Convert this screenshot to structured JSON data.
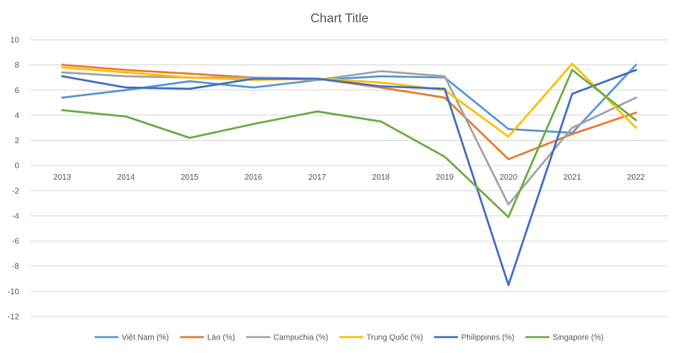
{
  "chart_data": {
    "type": "line",
    "title": "Chart Title",
    "xlabel": "",
    "ylabel": "",
    "categories": [
      "2013",
      "2014",
      "2015",
      "2016",
      "2017",
      "2018",
      "2019",
      "2020",
      "2021",
      "2022"
    ],
    "ylim": [
      -12,
      10
    ],
    "yticks": [
      10,
      8,
      6,
      4,
      2,
      0,
      -2,
      -4,
      -6,
      -8,
      -10,
      -12
    ],
    "grid": true,
    "legend_position": "bottom",
    "series": [
      {
        "name": "Việt Nam (%)",
        "color": "#5b9bd5",
        "values": [
          5.4,
          6.0,
          6.7,
          6.2,
          6.8,
          7.1,
          7.0,
          2.9,
          2.6,
          8.0
        ]
      },
      {
        "name": "Lào (%)",
        "color": "#ed7d31",
        "values": [
          8.0,
          7.6,
          7.3,
          7.0,
          6.9,
          6.2,
          5.4,
          0.5,
          2.5,
          4.2
        ]
      },
      {
        "name": "Campuchia (%)",
        "color": "#a5a5a5",
        "values": [
          7.4,
          7.1,
          7.0,
          7.0,
          6.8,
          7.5,
          7.1,
          -3.1,
          3.0,
          5.4
        ]
      },
      {
        "name": "Trung Quốc (%)",
        "color": "#ffc000",
        "values": [
          7.8,
          7.4,
          7.0,
          6.8,
          6.9,
          6.6,
          6.0,
          2.3,
          8.1,
          3.0
        ]
      },
      {
        "name": "Philippines (%)",
        "color": "#4472c4",
        "values": [
          7.1,
          6.2,
          6.1,
          6.9,
          6.9,
          6.3,
          6.1,
          -9.5,
          5.7,
          7.6
        ]
      },
      {
        "name": "Singapore (%)",
        "color": "#70ad47",
        "values": [
          4.4,
          3.9,
          2.2,
          3.3,
          4.3,
          3.5,
          0.7,
          -4.1,
          7.6,
          3.6
        ]
      }
    ]
  }
}
